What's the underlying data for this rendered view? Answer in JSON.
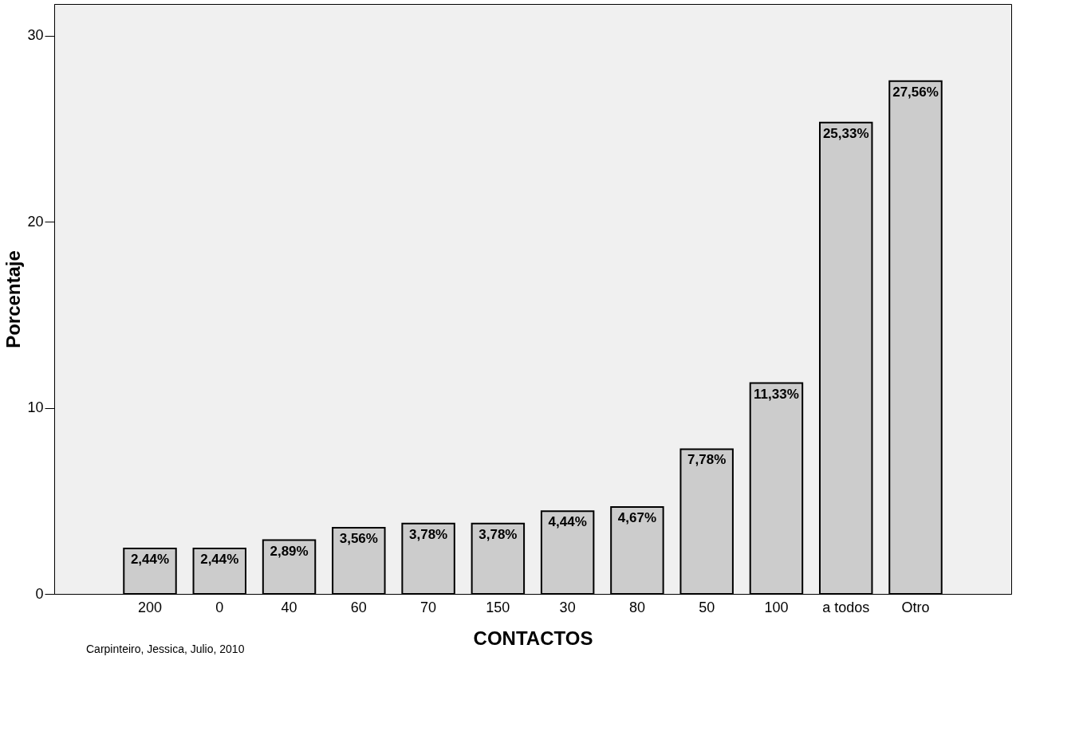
{
  "chart_data": {
    "type": "bar",
    "xlabel": "CONTACTOS",
    "ylabel": "Porcentaje",
    "categories": [
      "200",
      "0",
      "40",
      "60",
      "70",
      "150",
      "30",
      "80",
      "50",
      "100",
      "a todos",
      "Otro"
    ],
    "values": [
      2.44,
      2.44,
      2.89,
      3.56,
      3.78,
      3.78,
      4.44,
      4.67,
      7.78,
      11.33,
      25.33,
      27.56
    ],
    "value_labels": [
      "2,44%",
      "2,44%",
      "2,89%",
      "3,56%",
      "3,78%",
      "3,78%",
      "4,44%",
      "4,67%",
      "7,78%",
      "11,33%",
      "25,33%",
      "27,56%"
    ],
    "color": "#cccccc",
    "ylim": [
      0,
      31.7
    ],
    "yticks": [
      0,
      10,
      20,
      30
    ],
    "grid": false,
    "annotations": [
      "Carpinteiro, Jessica, Julio, 2010"
    ]
  }
}
